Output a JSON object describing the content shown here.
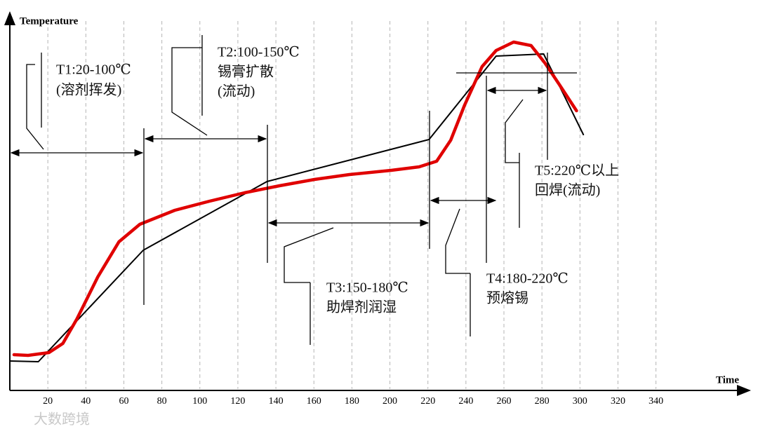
{
  "chart_data": {
    "type": "line",
    "x_label": "Time",
    "y_label": "Temperature",
    "xlim": [
      0,
      390
    ],
    "ylim": [
      0,
      100
    ],
    "xticks": [
      20,
      40,
      60,
      80,
      100,
      120,
      140,
      160,
      180,
      200,
      220,
      240,
      260,
      280,
      300,
      320,
      340
    ],
    "grid": true,
    "series": [
      {
        "color": "#000000",
        "x": [
          0,
          15,
          70.2,
          135.3,
          220.6,
          255.9,
          280.9,
          301.8
        ],
        "values": [
          8,
          7.8,
          39.6,
          59.2,
          71.2,
          95,
          95.6,
          72.6
        ]
      },
      {
        "color": "#e00000",
        "x": [
          2.2,
          9.6,
          20.6,
          27.9,
          35.3,
          46.3,
          57.4,
          68.4,
          86.8,
          105.1,
          123.5,
          141.9,
          160.3,
          178.7,
          200.7,
          215.4,
          224.6,
          232,
          239.3,
          248.5,
          255.9,
          265.1,
          274.3,
          281.6,
          289,
          298.2
        ],
        "values": [
          9.8,
          9.6,
          10.4,
          13,
          20,
          32,
          42,
          47,
          51,
          53.6,
          56,
          58,
          59.8,
          61.2,
          62.4,
          63.4,
          65,
          71,
          81,
          92,
          96.6,
          99,
          98,
          93,
          87,
          79.4
        ]
      }
    ],
    "annotations": [
      [
        "T1:20-100℃",
        "(溶剂挥发)"
      ],
      [
        "T2:100-150℃",
        "锡膏扩散",
        "(流动)"
      ],
      [
        "T3:150-180℃",
        "助焊剂润湿"
      ],
      [
        "T4:180-220℃",
        "预熔锡"
      ],
      [
        "T5:220℃以上",
        "回焊(流动)"
      ]
    ],
    "watermark": "大数跨境"
  }
}
